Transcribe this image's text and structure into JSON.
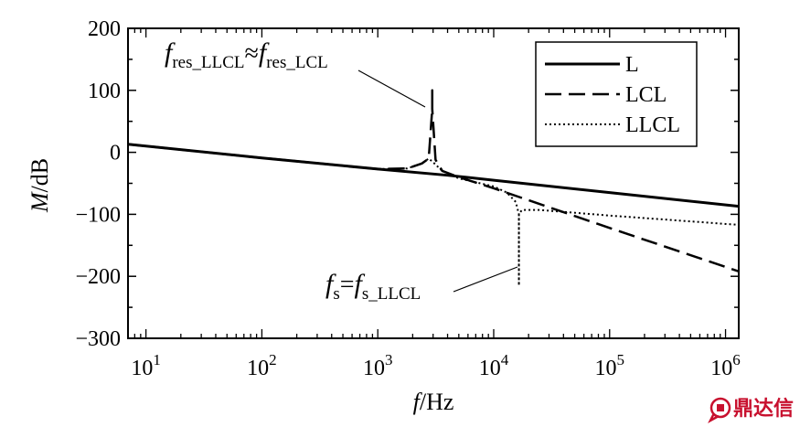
{
  "chart_data": {
    "type": "line",
    "xlabel_italic": "f",
    "xlabel_rest": "/Hz",
    "ylabel_italic": "M",
    "ylabel_rest": "/dB",
    "x_scale": "log",
    "xlim": [
      7,
      1300000
    ],
    "ylim": [
      -300,
      200
    ],
    "y_ticks": [
      200,
      100,
      0,
      -100,
      -200,
      -300
    ],
    "y_tick_labels": [
      "200",
      "100",
      "0",
      "−100",
      "−200",
      "−300"
    ],
    "x_ticks": [
      10,
      100,
      1000,
      10000,
      100000,
      1000000
    ],
    "x_tick_labels": [
      {
        "base": "10",
        "exp": "1"
      },
      {
        "base": "10",
        "exp": "2"
      },
      {
        "base": "10",
        "exp": "3"
      },
      {
        "base": "10",
        "exp": "4"
      },
      {
        "base": "10",
        "exp": "5"
      },
      {
        "base": "10",
        "exp": "6"
      }
    ],
    "grid": false,
    "legend_position": "top-right",
    "series": [
      {
        "name": "L",
        "style": "solid",
        "points": [
          [
            7,
            13
          ],
          [
            100,
            -9
          ],
          [
            1000,
            -27
          ],
          [
            4000,
            -37
          ],
          [
            10000,
            -45
          ],
          [
            100000,
            -65
          ],
          [
            1300000,
            -87
          ]
        ]
      },
      {
        "name": "LCL",
        "style": "dashed",
        "points": [
          [
            7,
            13
          ],
          [
            100,
            -9
          ],
          [
            1000,
            -27
          ],
          [
            1800,
            -26
          ],
          [
            2400,
            -18
          ],
          [
            2750,
            -10
          ],
          [
            2950,
            70
          ],
          [
            2950,
            100
          ],
          [
            2950,
            70
          ],
          [
            3150,
            -12
          ],
          [
            3600,
            -30
          ],
          [
            5000,
            -40
          ],
          [
            10000,
            -58
          ],
          [
            100000,
            -122
          ],
          [
            1300000,
            -192
          ]
        ]
      },
      {
        "name": "LLCL",
        "style": "dotted",
        "points": [
          [
            7,
            13
          ],
          [
            100,
            -9
          ],
          [
            1000,
            -27
          ],
          [
            1800,
            -26
          ],
          [
            2400,
            -18
          ],
          [
            2750,
            -10
          ],
          [
            3000,
            -16
          ],
          [
            3600,
            -30
          ],
          [
            5000,
            -42
          ],
          [
            10000,
            -55
          ],
          [
            13000,
            -65
          ],
          [
            15500,
            -80
          ],
          [
            16500,
            -100
          ],
          [
            16500,
            -215
          ],
          [
            16500,
            -100
          ],
          [
            17500,
            -93
          ],
          [
            25000,
            -93
          ],
          [
            100000,
            -102
          ],
          [
            1300000,
            -117
          ]
        ]
      }
    ],
    "annotations": [
      {
        "id": "resonance",
        "parts": [
          {
            "t": "f",
            "style": "italic"
          },
          {
            "t": "res_LLCL",
            "style": "sub"
          },
          {
            "t": "≈",
            "style": "normal"
          },
          {
            "t": "f",
            "style": "italic"
          },
          {
            "t": "res_LCL",
            "style": "sub"
          }
        ],
        "point": [
          2950,
          72
        ]
      },
      {
        "id": "switching",
        "parts": [
          {
            "t": "f",
            "style": "italic"
          },
          {
            "t": "s",
            "style": "sub"
          },
          {
            "t": "=",
            "style": "normal"
          },
          {
            "t": "f",
            "style": "italic"
          },
          {
            "t": "s_LLCL",
            "style": "sub"
          }
        ],
        "point": [
          16500,
          -183
        ]
      }
    ]
  },
  "watermark": {
    "text": "鼎达信",
    "color": "#c8102e",
    "icon": "chat-bubble-logo"
  }
}
